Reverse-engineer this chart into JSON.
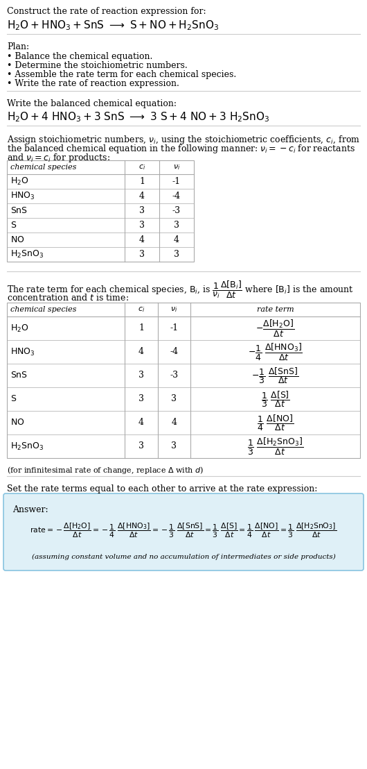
{
  "bg_color": "#ffffff",
  "text_color": "#333333",
  "table_border_color": "#aaaaaa",
  "answer_box_color": "#dff0f7",
  "answer_box_border": "#88c4e0",
  "font_family": "DejaVu Serif",
  "species_labels": [
    "H_2O",
    "HNO_3",
    "SnS",
    "S",
    "NO",
    "H_2SnO_3"
  ],
  "ci_vals": [
    "1",
    "4",
    "3",
    "3",
    "4",
    "3"
  ],
  "nu_vals": [
    "-1",
    "-4",
    "-3",
    "3",
    "4",
    "3"
  ]
}
